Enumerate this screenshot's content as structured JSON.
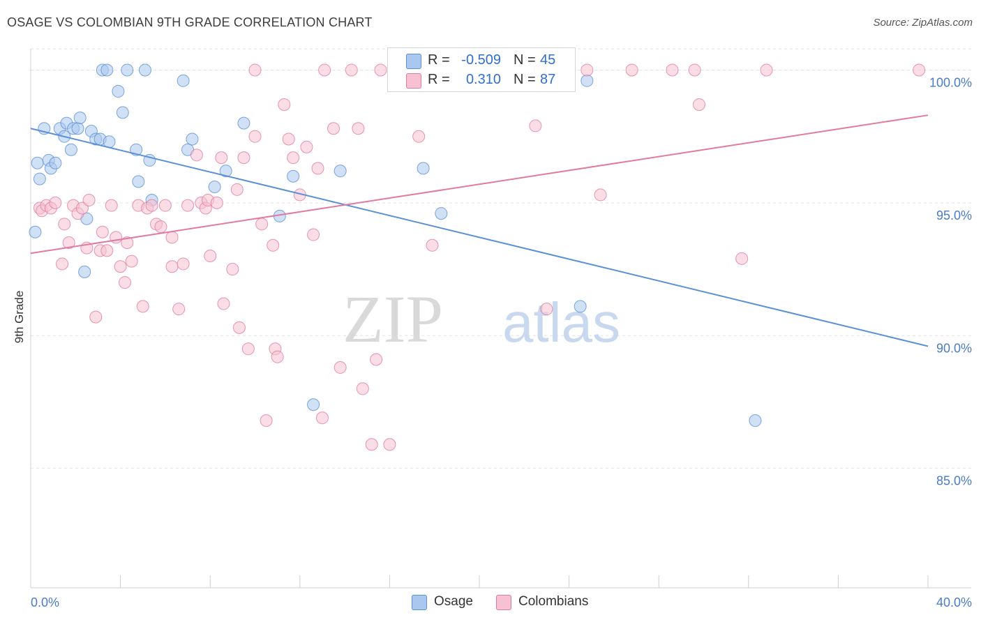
{
  "title": "OSAGE VS COLOMBIAN 9TH GRADE CORRELATION CHART",
  "source": "Source: ZipAtlas.com",
  "watermark": {
    "zip": "ZIP",
    "atlas": "atlas"
  },
  "legend": {
    "rows": [
      {
        "r_label": "R =",
        "r_value": "-0.509",
        "n_label": "N =",
        "n_value": "45",
        "color": "#a9c8ef",
        "stroke": "#5b8fd6"
      },
      {
        "r_label": "R =",
        "r_value": "0.310",
        "n_label": "N =",
        "n_value": "87",
        "color": "#f7c1d2",
        "stroke": "#e07aa0"
      }
    ]
  },
  "bottom_legend": [
    {
      "label": "Osage",
      "color": "#a9c8ef",
      "stroke": "#5b8fd6"
    },
    {
      "label": "Colombians",
      "color": "#f7c1d2",
      "stroke": "#e07aa0"
    }
  ],
  "chart_data": {
    "type": "scatter",
    "title": "OSAGE VS COLOMBIAN 9TH GRADE CORRELATION CHART",
    "xlabel": "",
    "ylabel": "9th Grade",
    "xlim": [
      0,
      40
    ],
    "ylim": [
      80.5,
      100.8
    ],
    "x_tick_labels": [
      "0.0%",
      "40.0%"
    ],
    "y_ticks": [
      85,
      90,
      95,
      100
    ],
    "y_tick_labels": [
      "85.0%",
      "90.0%",
      "95.0%",
      "100.0%"
    ],
    "grid": true,
    "legend_position": "top-center",
    "series": [
      {
        "name": "Osage",
        "color": "#5b8fd6",
        "fill": "#a9c8ef",
        "trend": {
          "x": [
            0.0,
            40.0
          ],
          "y": [
            97.8,
            89.6
          ]
        },
        "points": [
          [
            0.2,
            93.9
          ],
          [
            0.3,
            96.5
          ],
          [
            0.4,
            95.9
          ],
          [
            0.6,
            97.8
          ],
          [
            0.8,
            96.6
          ],
          [
            0.9,
            96.3
          ],
          [
            1.1,
            96.5
          ],
          [
            1.3,
            97.8
          ],
          [
            1.5,
            97.5
          ],
          [
            1.6,
            98.0
          ],
          [
            1.8,
            97.0
          ],
          [
            1.9,
            97.8
          ],
          [
            2.1,
            97.8
          ],
          [
            2.2,
            98.2
          ],
          [
            2.5,
            94.4
          ],
          [
            2.4,
            92.4
          ],
          [
            2.7,
            97.7
          ],
          [
            2.9,
            97.4
          ],
          [
            3.1,
            97.4
          ],
          [
            3.2,
            100.0
          ],
          [
            3.4,
            100.0
          ],
          [
            3.5,
            97.3
          ],
          [
            3.9,
            99.2
          ],
          [
            4.1,
            98.4
          ],
          [
            4.3,
            100.0
          ],
          [
            4.7,
            97.0
          ],
          [
            4.8,
            95.8
          ],
          [
            5.1,
            100.0
          ],
          [
            5.3,
            96.6
          ],
          [
            5.4,
            95.1
          ],
          [
            6.8,
            99.6
          ],
          [
            7.0,
            97.0
          ],
          [
            7.2,
            97.4
          ],
          [
            8.2,
            95.6
          ],
          [
            8.7,
            96.2
          ],
          [
            9.5,
            98.0
          ],
          [
            11.1,
            94.5
          ],
          [
            11.7,
            96.0
          ],
          [
            12.6,
            87.4
          ],
          [
            13.8,
            96.2
          ],
          [
            17.5,
            96.3
          ],
          [
            18.3,
            94.6
          ],
          [
            24.5,
            91.1
          ],
          [
            24.8,
            99.6
          ],
          [
            32.3,
            86.8
          ]
        ]
      },
      {
        "name": "Colombians",
        "color": "#e07aa0",
        "fill": "#f7c1d2",
        "trend": {
          "x": [
            0.0,
            40.0
          ],
          "y": [
            93.1,
            98.3
          ]
        },
        "points": [
          [
            0.4,
            94.8
          ],
          [
            0.5,
            94.7
          ],
          [
            0.7,
            94.9
          ],
          [
            0.9,
            94.8
          ],
          [
            1.1,
            95.0
          ],
          [
            1.4,
            92.7
          ],
          [
            1.5,
            94.2
          ],
          [
            1.7,
            93.5
          ],
          [
            1.9,
            94.9
          ],
          [
            2.1,
            94.6
          ],
          [
            2.3,
            94.8
          ],
          [
            2.5,
            93.3
          ],
          [
            2.6,
            95.1
          ],
          [
            2.9,
            90.7
          ],
          [
            3.1,
            93.2
          ],
          [
            3.2,
            93.9
          ],
          [
            3.4,
            93.2
          ],
          [
            3.6,
            94.9
          ],
          [
            3.8,
            93.7
          ],
          [
            4.0,
            92.6
          ],
          [
            4.2,
            92.0
          ],
          [
            4.3,
            93.5
          ],
          [
            4.5,
            92.8
          ],
          [
            4.8,
            94.9
          ],
          [
            5.0,
            91.1
          ],
          [
            5.2,
            94.8
          ],
          [
            5.4,
            94.9
          ],
          [
            5.6,
            94.2
          ],
          [
            5.8,
            94.1
          ],
          [
            6.0,
            94.9
          ],
          [
            6.3,
            93.7
          ],
          [
            6.3,
            92.6
          ],
          [
            6.6,
            91.0
          ],
          [
            6.8,
            92.7
          ],
          [
            7.0,
            94.9
          ],
          [
            7.4,
            96.8
          ],
          [
            7.6,
            95.0
          ],
          [
            7.8,
            94.8
          ],
          [
            7.9,
            95.1
          ],
          [
            8.0,
            93.0
          ],
          [
            8.3,
            95.0
          ],
          [
            8.5,
            96.7
          ],
          [
            8.6,
            91.2
          ],
          [
            9.0,
            92.5
          ],
          [
            9.2,
            95.5
          ],
          [
            9.3,
            90.3
          ],
          [
            9.5,
            96.7
          ],
          [
            9.7,
            89.5
          ],
          [
            10.0,
            97.5
          ],
          [
            10.3,
            94.2
          ],
          [
            10.5,
            86.8
          ],
          [
            10.8,
            93.4
          ],
          [
            10.9,
            89.5
          ],
          [
            11.0,
            89.2
          ],
          [
            11.3,
            98.7
          ],
          [
            11.5,
            97.4
          ],
          [
            11.7,
            96.7
          ],
          [
            12.0,
            95.3
          ],
          [
            12.3,
            97.1
          ],
          [
            12.6,
            93.8
          ],
          [
            12.8,
            96.3
          ],
          [
            13.0,
            86.9
          ],
          [
            13.1,
            100.0
          ],
          [
            13.5,
            97.8
          ],
          [
            13.8,
            88.8
          ],
          [
            14.3,
            100.0
          ],
          [
            14.6,
            97.8
          ],
          [
            14.8,
            88.0
          ],
          [
            15.2,
            85.9
          ],
          [
            15.4,
            89.1
          ],
          [
            15.6,
            100.0
          ],
          [
            16.0,
            85.9
          ],
          [
            17.3,
            97.5
          ],
          [
            17.9,
            93.4
          ],
          [
            22.5,
            97.9
          ],
          [
            22.7,
            100.0
          ],
          [
            23.0,
            91.0
          ],
          [
            24.8,
            100.0
          ],
          [
            25.4,
            95.3
          ],
          [
            26.8,
            100.0
          ],
          [
            28.6,
            100.0
          ],
          [
            29.6,
            100.0
          ],
          [
            29.8,
            98.7
          ],
          [
            31.7,
            92.9
          ],
          [
            32.8,
            100.0
          ],
          [
            39.6,
            100.0
          ],
          [
            10.0,
            100.0
          ]
        ]
      }
    ]
  }
}
